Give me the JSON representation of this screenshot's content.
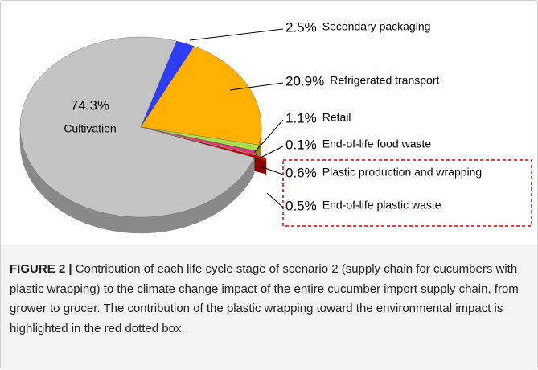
{
  "chart_data": {
    "type": "pie",
    "categories": [
      "Secondary packaging",
      "Refrigerated transport",
      "Retail",
      "End-of-life food waste",
      "Plastic production and wrapping",
      "End-of-life plastic waste",
      "Cultivation"
    ],
    "values": [
      2.5,
      20.9,
      1.1,
      0.1,
      0.6,
      0.5,
      74.3
    ],
    "value_labels": [
      "2.5%",
      "20.9%",
      "1.1%",
      "0.1%",
      "0.6%",
      "0.5%",
      "74.3%"
    ],
    "colors": [
      "#2f3cf5",
      "#ffb000",
      "#a8e04a",
      "#7b3fc0",
      "#e2386e",
      "#c80000",
      "#c4c4c4"
    ],
    "exploded": [
      "End-of-life plastic waste"
    ],
    "highlight": [
      "Plastic production and wrapping",
      "End-of-life plastic waste"
    ]
  },
  "caption": {
    "label": "FIGURE 2 |",
    "text": "Contribution of each life cycle stage of scenario 2 (supply chain for cucumbers with plastic wrapping) to the climate change impact of the entire cucumber import supply chain, from grower to grocer. The contribution of the plastic wrapping toward the environmental impact is highlighted in the red dotted box."
  }
}
